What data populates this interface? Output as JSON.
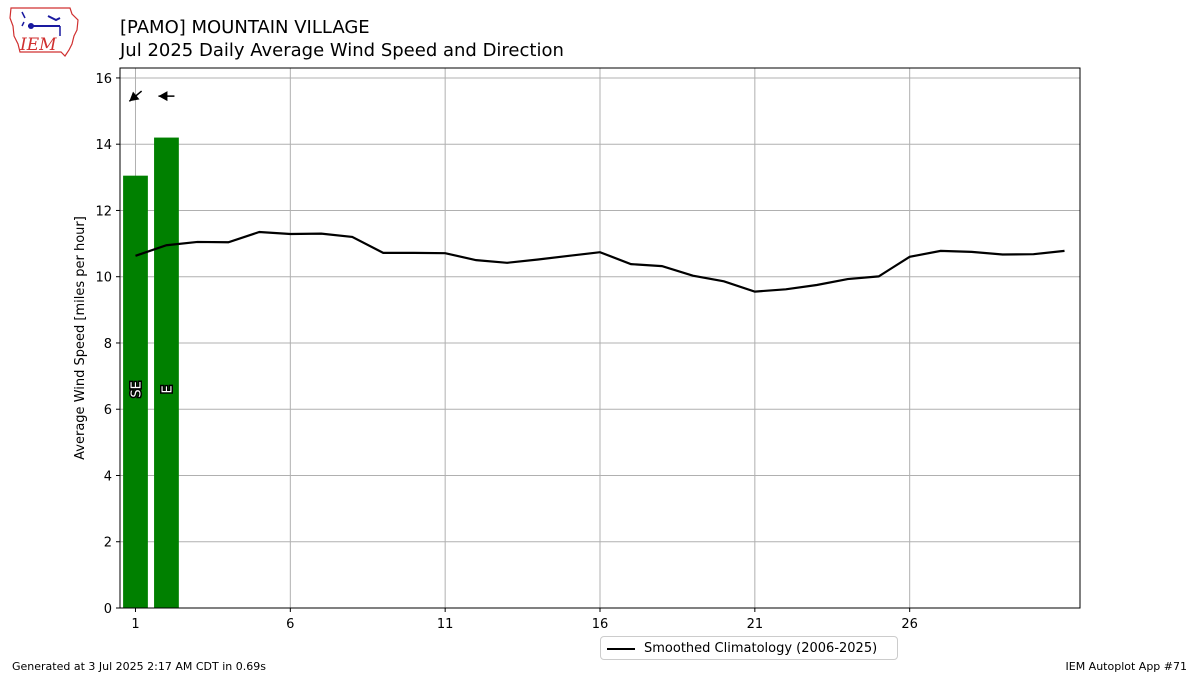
{
  "header": {
    "title_line1": "[PAMO] MOUNTAIN VILLAGE",
    "title_line2": "Jul 2025 Daily Average Wind Speed and Direction"
  },
  "logo": {
    "text": "IEM"
  },
  "footer": {
    "left": "Generated at 3 Jul 2025 2:17 AM CDT in 0.69s",
    "right": "IEM Autoplot App #71"
  },
  "legend": {
    "label": "Smoothed Climatology (2006-2025)"
  },
  "colors": {
    "bars": "#008000",
    "climatology_line": "#000000",
    "grid": "#b0b0b0"
  },
  "chart_data": {
    "type": "bar",
    "ylabel": "Average Wind Speed [miles per hour]",
    "xlim": [
      0.5,
      31.5
    ],
    "ylim": [
      0,
      16.3
    ],
    "xticks": [
      1,
      6,
      11,
      16,
      21,
      26
    ],
    "yticks": [
      0,
      2,
      4,
      6,
      8,
      10,
      12,
      14,
      16
    ],
    "grid": true,
    "legend_position": "bottom-center",
    "bars": [
      {
        "day": 1,
        "value": 13.05,
        "direction": "SE",
        "arrow_angle_deg": 130
      },
      {
        "day": 2,
        "value": 14.2,
        "direction": "E",
        "arrow_angle_deg": 90
      }
    ],
    "series": [
      {
        "name": "Smoothed Climatology (2006-2025)",
        "type": "line",
        "x": [
          1,
          2,
          3,
          4,
          5,
          6,
          7,
          8,
          9,
          10,
          11,
          12,
          13,
          14,
          15,
          16,
          17,
          18,
          19,
          20,
          21,
          22,
          23,
          24,
          25,
          26,
          27,
          28,
          29,
          30,
          31
        ],
        "values": [
          10.63,
          10.95,
          11.05,
          11.04,
          11.35,
          11.29,
          11.3,
          11.2,
          10.72,
          10.72,
          10.71,
          10.5,
          10.42,
          10.52,
          10.63,
          10.74,
          10.38,
          10.32,
          10.03,
          9.86,
          9.55,
          9.62,
          9.75,
          9.93,
          10.01,
          10.6,
          10.78,
          10.75,
          10.67,
          10.68,
          10.78
        ]
      }
    ]
  }
}
